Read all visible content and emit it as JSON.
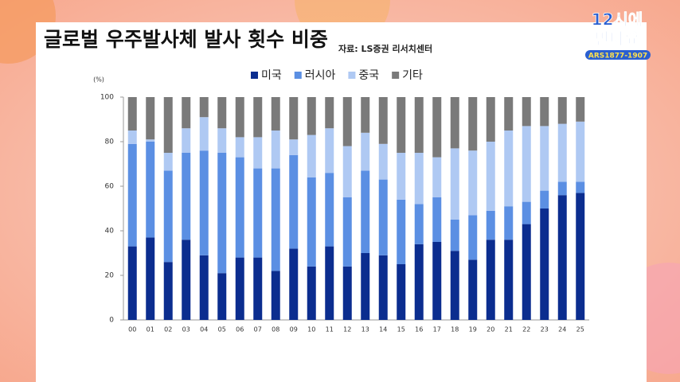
{
  "header": {
    "title": "글로벌 우주발사체 발사 횟수 비중",
    "source": "자료: LS증권 리서치센터"
  },
  "logo": {
    "line1": "12시에",
    "line2": "만나요",
    "ars": "ARS1877-1907"
  },
  "chart_data": {
    "type": "bar",
    "stacked": true,
    "unit_label": "(%)",
    "categories": [
      "00",
      "01",
      "02",
      "03",
      "04",
      "05",
      "06",
      "07",
      "08",
      "09",
      "10",
      "11",
      "12",
      "13",
      "14",
      "15",
      "16",
      "17",
      "18",
      "19",
      "20",
      "21",
      "22",
      "23",
      "24",
      "25"
    ],
    "series": [
      {
        "name": "미국",
        "color": "#0b2d8f",
        "values": [
          33,
          37,
          26,
          36,
          29,
          21,
          28,
          28,
          22,
          32,
          24,
          33,
          24,
          30,
          29,
          25,
          34,
          35,
          31,
          27,
          36,
          36,
          43,
          50,
          56,
          57
        ]
      },
      {
        "name": "러시아",
        "color": "#5b8fe3",
        "values": [
          46,
          43,
          41,
          39,
          47,
          54,
          45,
          40,
          46,
          42,
          40,
          33,
          31,
          37,
          34,
          29,
          18,
          20,
          14,
          20,
          13,
          15,
          10,
          8,
          6,
          5
        ]
      },
      {
        "name": "중국",
        "color": "#afc9f3",
        "values": [
          6,
          1,
          8,
          11,
          15,
          11,
          9,
          14,
          17,
          7,
          19,
          20,
          23,
          17,
          16,
          21,
          23,
          18,
          32,
          29,
          31,
          34,
          34,
          29,
          26,
          27
        ]
      },
      {
        "name": "기타",
        "color": "#7a7a7a",
        "values": [
          15,
          19,
          25,
          14,
          9,
          14,
          18,
          18,
          15,
          19,
          17,
          14,
          22,
          16,
          21,
          25,
          25,
          27,
          23,
          24,
          20,
          15,
          13,
          13,
          12,
          11
        ]
      }
    ],
    "ylim": [
      0,
      100
    ],
    "yticks": [
      0,
      20,
      40,
      60,
      80,
      100
    ],
    "legend": "top"
  }
}
